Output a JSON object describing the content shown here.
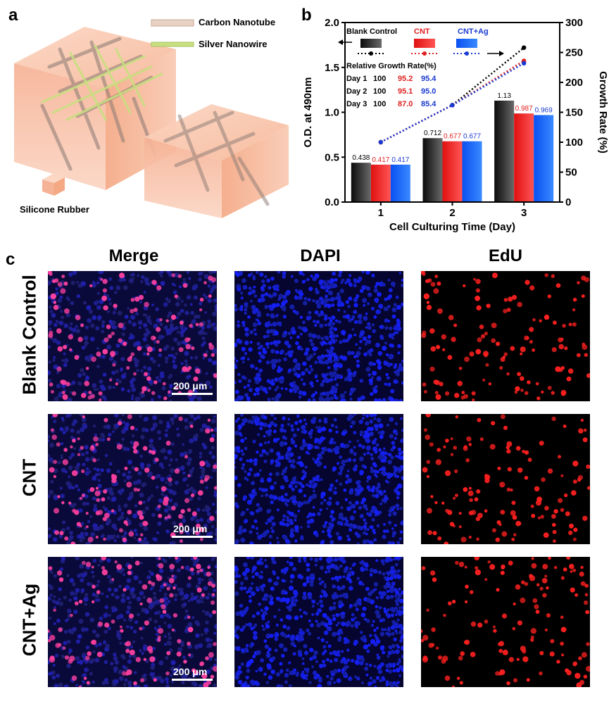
{
  "panel_a": {
    "letter": "a",
    "legend": [
      {
        "label": "Carbon Nanotube",
        "color": "#d8c0b0"
      },
      {
        "label": "Silver Nanowire",
        "color": "#c8e080"
      }
    ],
    "small_cube_label": "Silicone Rubber"
  },
  "panel_b": {
    "letter": "b",
    "legend_labels": [
      "Blank Control",
      "CNT",
      "CNT+Ag"
    ],
    "table_title": "Relative Growth Rate(%)",
    "table_rows": [
      {
        "day": "Day 1",
        "blank": "100",
        "cnt": "95.2",
        "cntag": "95.4"
      },
      {
        "day": "Day 2",
        "blank": "100",
        "cnt": "95.1",
        "cntag": "95.0"
      },
      {
        "day": "Day 3",
        "blank": "100",
        "cnt": "87.0",
        "cntag": "85.4"
      }
    ]
  },
  "chart_data": {
    "type": "bar",
    "categories": [
      "1",
      "2",
      "3"
    ],
    "xlabel": "Cell Culturing Time (Day)",
    "ylabel": "O.D. at 490nm",
    "y2label": "Growth Rate (%)",
    "ylim": [
      0.0,
      2.0
    ],
    "y2lim": [
      0,
      300
    ],
    "yticks": [
      "0.0",
      "0.5",
      "1.0",
      "1.5",
      "2.0"
    ],
    "y2ticks": [
      "0",
      "50",
      "100",
      "150",
      "200",
      "250",
      "300"
    ],
    "series": [
      {
        "name": "Blank Control",
        "values": [
          0.438,
          0.712,
          1.13
        ],
        "labels": [
          "0.438",
          "0.712",
          "1.13"
        ],
        "color": "#1a1a1a",
        "label_color": "#000000"
      },
      {
        "name": "CNT",
        "values": [
          0.417,
          0.677,
          0.987
        ],
        "labels": [
          "0.417",
          "0.677",
          "0.987"
        ],
        "color": "#ff3030",
        "label_color": "#e02020"
      },
      {
        "name": "CNT+Ag",
        "values": [
          0.417,
          0.677,
          0.969
        ],
        "labels": [
          "0.417",
          "0.677",
          "0.969"
        ],
        "color": "#1a6aff",
        "label_color": "#1a3ad0"
      }
    ],
    "growth_lines": [
      {
        "name": "Blank Control",
        "values": [
          100,
          162,
          258
        ],
        "color": "#000000"
      },
      {
        "name": "CNT",
        "values": [
          100,
          162,
          236
        ],
        "color": "#e02020"
      },
      {
        "name": "CNT+Ag",
        "values": [
          100,
          162,
          232
        ],
        "color": "#1a3ad0"
      }
    ],
    "grid": false
  },
  "panel_c": {
    "letter": "c",
    "columns": [
      "Merge",
      "DAPI",
      "EdU"
    ],
    "rows": [
      "Blank Control",
      "CNT",
      "CNT+Ag"
    ],
    "scale_label": "200 μm"
  }
}
